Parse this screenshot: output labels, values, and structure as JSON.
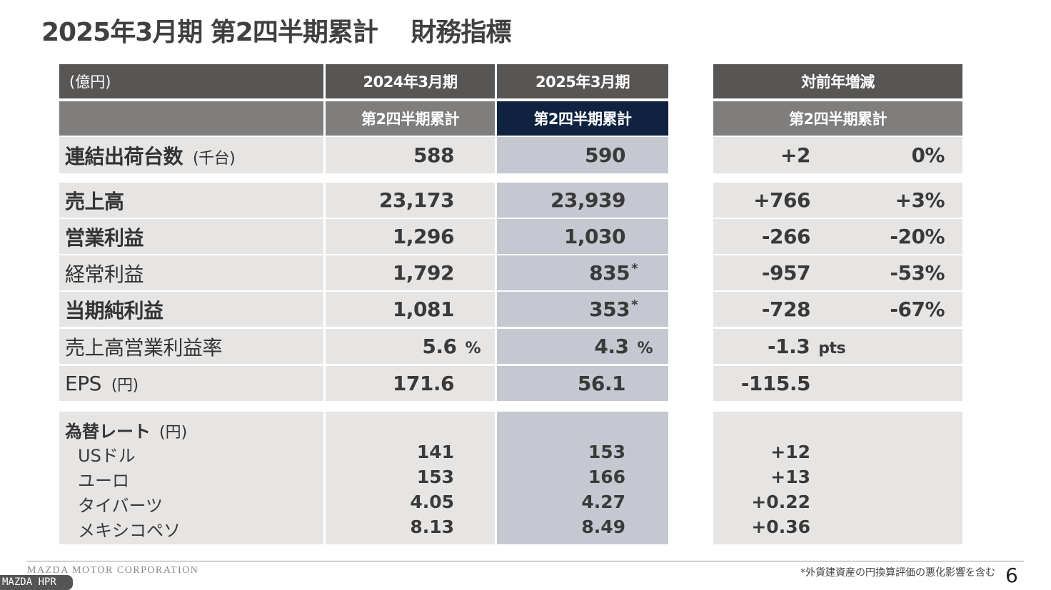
{
  "title": "2025年3月期 第2四半期累計　 財務指標",
  "header": {
    "unit": "(億円)",
    "col_prev_year": "2024年3月期",
    "col_curr_year": "2025年3月期",
    "col_change": "対前年増減",
    "sub_prev": "第2四半期累計",
    "sub_curr": "第2四半期累計",
    "sub_change": "第2四半期累計"
  },
  "shipments": {
    "label": "連結出荷台数",
    "unit": "(千台)",
    "prev": "588",
    "curr": "590",
    "change": "+2",
    "change_pct": "0%"
  },
  "rows": [
    {
      "label": "売上高",
      "bold": true,
      "prev": "23,173",
      "curr": "23,939",
      "curr_note": "",
      "change": "+766",
      "change_pct": "+3%"
    },
    {
      "label": "営業利益",
      "bold": true,
      "prev": "1,296",
      "curr": "1,030",
      "curr_note": "",
      "change": "-266",
      "change_pct": "-20%"
    },
    {
      "label": "経常利益",
      "bold": false,
      "prev": "1,792",
      "curr": "835",
      "curr_note": "*",
      "change": "-957",
      "change_pct": "-53%"
    },
    {
      "label": "当期純利益",
      "bold": true,
      "prev": "1,081",
      "curr": "353",
      "curr_note": "*",
      "change": "-728",
      "change_pct": "-67%"
    },
    {
      "label": "売上高営業利益率",
      "bold": false,
      "prev": "5.6",
      "prev_unit": "%",
      "curr": "4.3",
      "curr_unit": "%",
      "change": "-1.3",
      "change_unit": "pts",
      "change_pct": ""
    },
    {
      "label": "EPS",
      "label_unit": "(円)",
      "bold": false,
      "prev": "171.6",
      "curr": "56.1",
      "change": "-115.5",
      "change_pct": ""
    }
  ],
  "fx": {
    "title": "為替レート",
    "unit": "(円)",
    "items": [
      {
        "label": "USドル",
        "prev": "141",
        "curr": "153",
        "change": "+12"
      },
      {
        "label": "ユーロ",
        "prev": "153",
        "curr": "166",
        "change": "+13"
      },
      {
        "label": "タイバーツ",
        "prev": "4.05",
        "curr": "4.27",
        "change": "+0.22"
      },
      {
        "label": "メキシコペソ",
        "prev": "8.13",
        "curr": "8.49",
        "change": "+0.36"
      }
    ]
  },
  "footer": {
    "corporation": "MAZDA MOTOR CORPORATION",
    "note": "*外貨建資産の円換算評価の悪化影響を含む",
    "page_number": "6",
    "overlay_label": "MAZDA  HPR"
  },
  "colors": {
    "header_dark": "#575655",
    "header_mid": "#7f7e7d",
    "highlight_navy": "#0f2240",
    "body_light": "#e6e5e4",
    "body_blue": "#c6c8d1"
  }
}
